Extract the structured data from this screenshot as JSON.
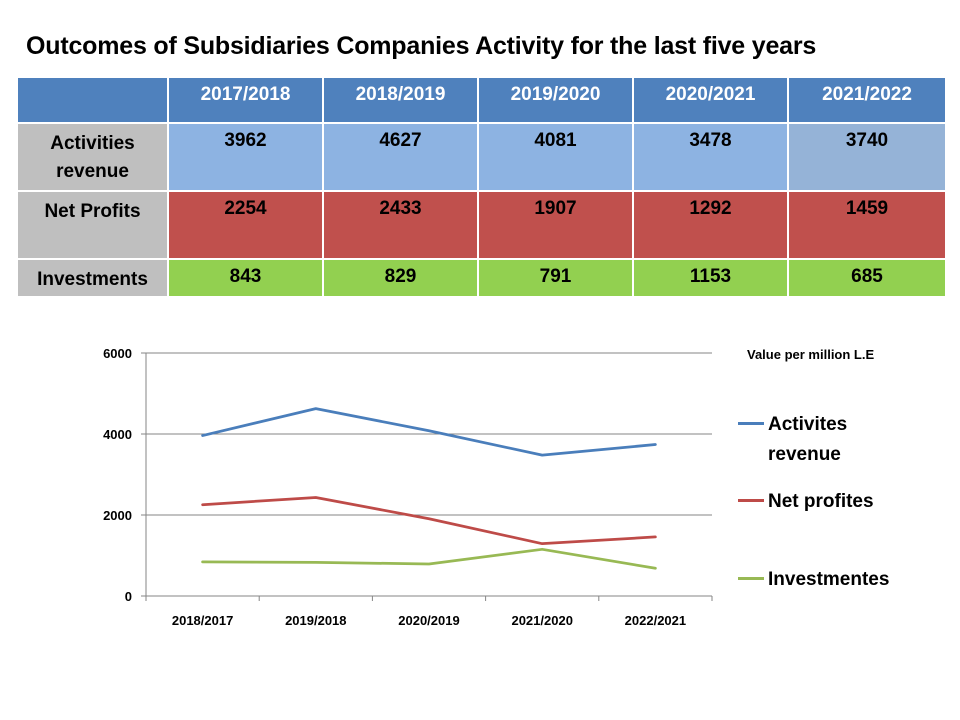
{
  "title": "Outcomes of Subsidiaries Companies Activity for the last five years",
  "table": {
    "columns": [
      "2017/2018",
      "2018/2019",
      "2019/2020",
      "2020/2021",
      "2021/2022"
    ],
    "rows": [
      {
        "label": "Activities revenue",
        "values": [
          "3962",
          "4627",
          "4081",
          "3478",
          "3740"
        ]
      },
      {
        "label": "Net Profits",
        "values": [
          "2254",
          "2433",
          "1907",
          "1292",
          "1459"
        ]
      },
      {
        "label": "Investments",
        "values": [
          "843",
          "829",
          "791",
          "1153",
          "685"
        ]
      }
    ]
  },
  "chart_data": {
    "type": "line",
    "annotation": "Value per million L.E",
    "categories": [
      "2018/2017",
      "2019/2018",
      "2020/2019",
      "2021/2020",
      "2022/2021"
    ],
    "ylim": [
      0,
      6000
    ],
    "yticks": [
      "0",
      "2000",
      "4000",
      "6000"
    ],
    "grid": true,
    "legend_position": "right",
    "series": [
      {
        "name": "Activites revenue",
        "color": "#4a7ebb",
        "values": [
          3962,
          4627,
          4081,
          3478,
          3740
        ]
      },
      {
        "name": "Net profites",
        "color": "#be4b48",
        "values": [
          2254,
          2433,
          1907,
          1292,
          1459
        ]
      },
      {
        "name": "Investmentes",
        "color": "#98b954",
        "values": [
          843,
          829,
          791,
          1153,
          685
        ]
      }
    ]
  }
}
